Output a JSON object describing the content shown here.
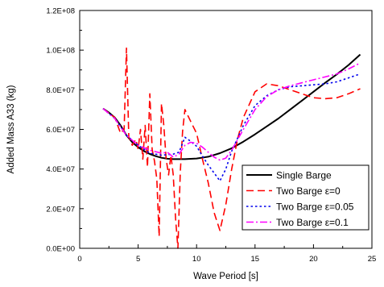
{
  "chart_data": {
    "type": "line",
    "title": "",
    "xlabel": "Wave Period [s]",
    "ylabel": "Added Mass A33 (kg)",
    "xlim": [
      0,
      25
    ],
    "ylim": [
      0,
      120000000
    ],
    "xticks": [
      0,
      5,
      10,
      15,
      20,
      25
    ],
    "yticks": [
      0,
      20000000,
      40000000,
      60000000,
      80000000,
      100000000,
      120000000
    ],
    "xtick_labels": [
      "0",
      "5",
      "10",
      "15",
      "20",
      "25"
    ],
    "ytick_labels": [
      "0.0E+00",
      "2.0E+07",
      "4.0E+07",
      "6.0E+07",
      "8.0E+07",
      "1.0E+08",
      "1.2E+08"
    ],
    "grid": false,
    "legend_position": "bottom-right",
    "series": [
      {
        "name": "Single Barge",
        "color": "#000000",
        "dash": "solid",
        "x": [
          2,
          2.5,
          3,
          3.5,
          4,
          4.5,
          5,
          5.5,
          6,
          6.5,
          7,
          7.5,
          8,
          9,
          10,
          11,
          12,
          13,
          14,
          15,
          16,
          17,
          18,
          19,
          20,
          21,
          22,
          23,
          24
        ],
        "y": [
          70500000,
          68500000,
          66000000,
          62000000,
          57000000,
          53500000,
          51000000,
          49000000,
          47600000,
          46500000,
          45700000,
          45200000,
          45000000,
          45000000,
          45300000,
          46200000,
          48000000,
          50500000,
          53800000,
          57500000,
          61500000,
          65500000,
          70000000,
          74500000,
          79000000,
          83500000,
          87800000,
          92500000,
          97800000
        ]
      },
      {
        "name": "Two Barge ε=0",
        "color": "#ff0000",
        "dash": "dashed",
        "x": [
          2,
          3,
          3.5,
          3.8,
          4.0,
          4.2,
          4.5,
          4.8,
          5.0,
          5.2,
          5.4,
          5.6,
          5.8,
          6.0,
          6.2,
          6.4,
          6.6,
          6.8,
          7.0,
          7.2,
          7.4,
          7.6,
          7.8,
          8.0,
          8.2,
          8.4,
          8.6,
          8.8,
          9.0,
          9.5,
          10,
          10.5,
          11,
          11.5,
          12,
          12.5,
          13,
          13.5,
          14,
          15,
          16,
          17,
          18,
          19,
          20,
          21,
          22,
          23,
          24
        ],
        "y": [
          70500000,
          66000000,
          58000000,
          60000000,
          101000000,
          56000000,
          52000000,
          55000000,
          50000000,
          60000000,
          45000000,
          62000000,
          41000000,
          78000000,
          50000000,
          44000000,
          35000000,
          6000000,
          73000000,
          62000000,
          45000000,
          37000000,
          47000000,
          37000000,
          15000000,
          0,
          38000000,
          59000000,
          70000000,
          64000000,
          58000000,
          45000000,
          33000000,
          18000000,
          9000000,
          22000000,
          40000000,
          55000000,
          66000000,
          79000000,
          83000000,
          82000000,
          80000000,
          78000000,
          76000000,
          75500000,
          76000000,
          78000000,
          80500000
        ]
      },
      {
        "name": "Two Barge ε=0.05",
        "color": "#0000ee",
        "dash": "dotted",
        "x": [
          2,
          3,
          4,
          5,
          6,
          7,
          8,
          8.5,
          9,
          9.5,
          10,
          10.5,
          11,
          11.5,
          12,
          12.5,
          13,
          14,
          15,
          16,
          17,
          18,
          19,
          20,
          21,
          22,
          23,
          24
        ],
        "y": [
          70500000,
          65500000,
          57000000,
          52000000,
          48000000,
          47000000,
          47500000,
          48500000,
          56000000,
          54000000,
          51500000,
          46500000,
          42000000,
          38000000,
          34000000,
          40000000,
          49000000,
          62000000,
          72000000,
          77000000,
          80000000,
          81500000,
          82000000,
          82500000,
          83000000,
          84000000,
          86000000,
          88000000
        ]
      },
      {
        "name": "Two Barge ε=0.1",
        "color": "#ff00ff",
        "dash": "dashdot",
        "x": [
          2,
          3,
          4,
          5,
          6,
          7,
          7.5,
          8,
          8.5,
          9,
          9.5,
          10,
          10.5,
          11,
          11.5,
          12,
          12.5,
          13,
          14,
          15,
          16,
          17,
          18,
          19,
          20,
          21,
          22,
          23,
          24
        ],
        "y": [
          70500000,
          65500000,
          57000000,
          52000000,
          49500000,
          48000000,
          48500000,
          46000000,
          47500000,
          52000000,
          53500000,
          53000000,
          51000000,
          48500000,
          46000000,
          44500000,
          45500000,
          49500000,
          60000000,
          70000000,
          76500000,
          80000000,
          82000000,
          83500000,
          85000000,
          86500000,
          88000000,
          90500000,
          93500000
        ]
      }
    ]
  }
}
